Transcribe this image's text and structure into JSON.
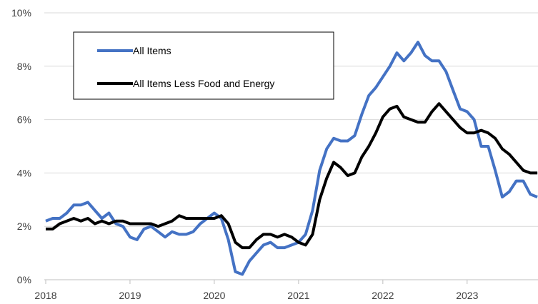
{
  "chart_data": {
    "type": "line",
    "title": "",
    "xlabel": "",
    "ylabel": "",
    "y_unit": "percent",
    "ylim": [
      0,
      10
    ],
    "yticks": [
      0,
      2,
      4,
      6,
      8,
      10
    ],
    "ytick_labels": [
      "0%",
      "2%",
      "4%",
      "6%",
      "8%",
      "10%"
    ],
    "xlim": [
      "2018-01",
      "2023-11"
    ],
    "xtick_labels": [
      "2018",
      "2019",
      "2020",
      "2021",
      "2022",
      "2023"
    ],
    "grid": "horizontal",
    "legend_position": "top-left",
    "x": [
      "2018-01",
      "2018-02",
      "2018-03",
      "2018-04",
      "2018-05",
      "2018-06",
      "2018-07",
      "2018-08",
      "2018-09",
      "2018-10",
      "2018-11",
      "2018-12",
      "2019-01",
      "2019-02",
      "2019-03",
      "2019-04",
      "2019-05",
      "2019-06",
      "2019-07",
      "2019-08",
      "2019-09",
      "2019-10",
      "2019-11",
      "2019-12",
      "2020-01",
      "2020-02",
      "2020-03",
      "2020-04",
      "2020-05",
      "2020-06",
      "2020-07",
      "2020-08",
      "2020-09",
      "2020-10",
      "2020-11",
      "2020-12",
      "2021-01",
      "2021-02",
      "2021-03",
      "2021-04",
      "2021-05",
      "2021-06",
      "2021-07",
      "2021-08",
      "2021-09",
      "2021-10",
      "2021-11",
      "2021-12",
      "2022-01",
      "2022-02",
      "2022-03",
      "2022-04",
      "2022-05",
      "2022-06",
      "2022-07",
      "2022-08",
      "2022-09",
      "2022-10",
      "2022-11",
      "2022-12",
      "2023-01",
      "2023-02",
      "2023-03",
      "2023-04",
      "2023-05",
      "2023-06",
      "2023-07",
      "2023-08",
      "2023-09",
      "2023-10",
      "2023-11"
    ],
    "series": [
      {
        "name": "All Items",
        "color": "#4472c4",
        "values": [
          2.2,
          2.3,
          2.3,
          2.5,
          2.8,
          2.8,
          2.9,
          2.6,
          2.3,
          2.5,
          2.1,
          2.0,
          1.6,
          1.5,
          1.9,
          2.0,
          1.8,
          1.6,
          1.8,
          1.7,
          1.7,
          1.8,
          2.1,
          2.3,
          2.5,
          2.3,
          1.5,
          0.3,
          0.2,
          0.7,
          1.0,
          1.3,
          1.4,
          1.2,
          1.2,
          1.3,
          1.4,
          1.7,
          2.6,
          4.1,
          4.9,
          5.3,
          5.2,
          5.2,
          5.4,
          6.2,
          6.9,
          7.2,
          7.6,
          8.0,
          8.5,
          8.2,
          8.5,
          8.9,
          8.4,
          8.2,
          8.2,
          7.8,
          7.1,
          6.4,
          6.3,
          6.0,
          5.0,
          5.0,
          4.1,
          3.1,
          3.3,
          3.7,
          3.7,
          3.2,
          3.1
        ]
      },
      {
        "name": "All Items Less Food and Energy",
        "color": "#000000",
        "values": [
          1.9,
          1.9,
          2.1,
          2.2,
          2.3,
          2.2,
          2.3,
          2.1,
          2.2,
          2.1,
          2.2,
          2.2,
          2.1,
          2.1,
          2.1,
          2.1,
          2.0,
          2.1,
          2.2,
          2.4,
          2.3,
          2.3,
          2.3,
          2.3,
          2.3,
          2.4,
          2.1,
          1.4,
          1.2,
          1.2,
          1.5,
          1.7,
          1.7,
          1.6,
          1.7,
          1.6,
          1.4,
          1.3,
          1.7,
          3.0,
          3.8,
          4.4,
          4.2,
          3.9,
          4.0,
          4.6,
          5.0,
          5.5,
          6.1,
          6.4,
          6.5,
          6.1,
          6.0,
          5.9,
          5.9,
          6.3,
          6.6,
          6.3,
          6.0,
          5.7,
          5.5,
          5.5,
          5.6,
          5.5,
          5.3,
          4.9,
          4.7,
          4.4,
          4.1,
          4.0,
          4.0
        ]
      }
    ]
  }
}
